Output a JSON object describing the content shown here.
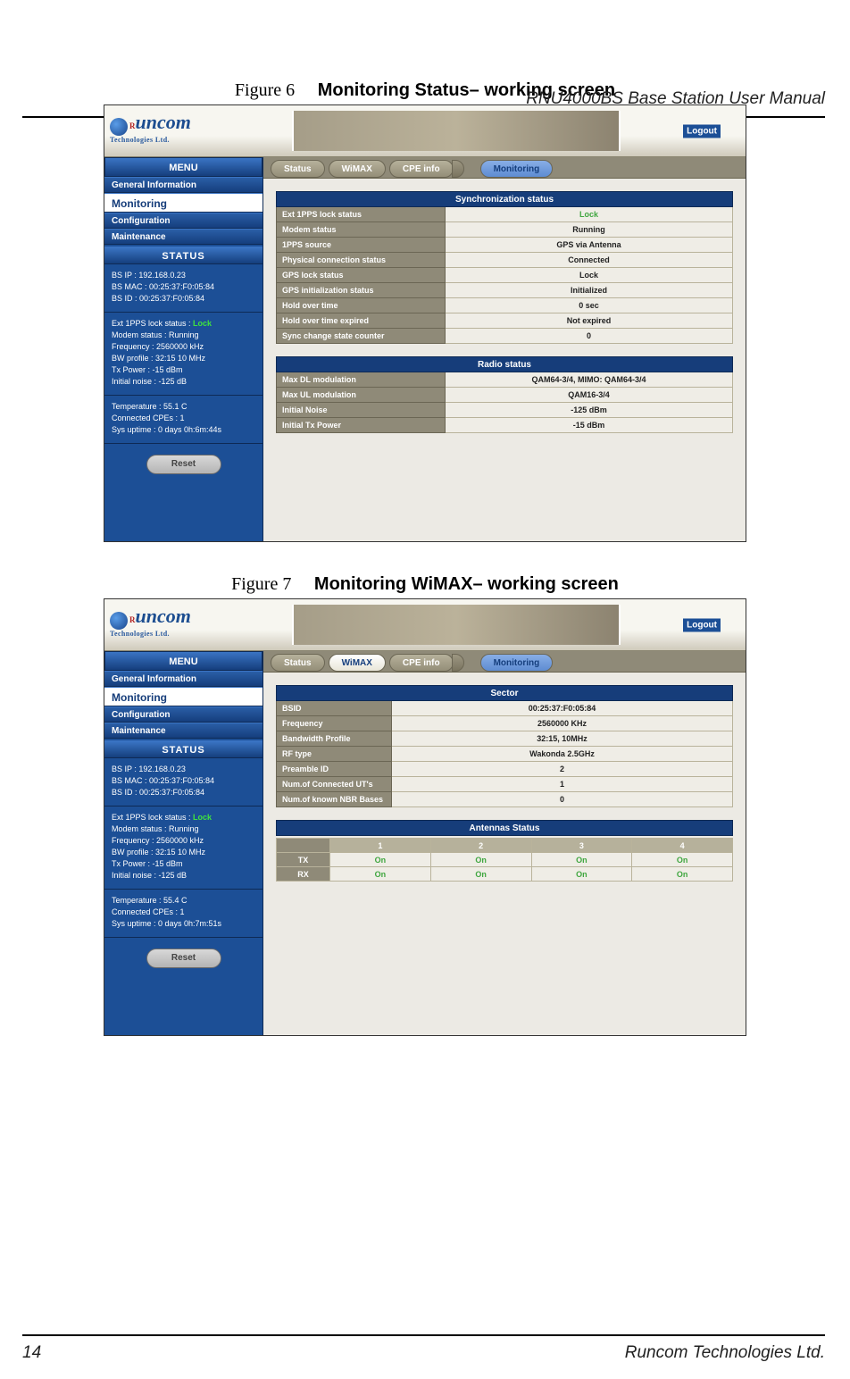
{
  "doc": {
    "header": "RNU4000BS Base Station User Manual",
    "page_number": "14",
    "footer": "Runcom Technologies Ltd."
  },
  "captions": {
    "fig6_num": "Figure 6",
    "fig6_title": "Monitoring Status– working screen",
    "fig7_num": "Figure 7",
    "fig7_title": "Monitoring WiMAX– working screen"
  },
  "common": {
    "logo_line1": "uncom",
    "logo_red": "R",
    "logo_line2": "Technologies Ltd.",
    "logout": "Logout",
    "menu_label": "MENU",
    "status_label": "STATUS",
    "nav": [
      "General Information",
      "Monitoring",
      "Configuration",
      "Maintenance"
    ],
    "reset": "Reset",
    "tabs": {
      "status": "Status",
      "wimax": "WiMAX",
      "cpe": "CPE info",
      "monitoring": "Monitoring"
    }
  },
  "fig6": {
    "status_lines": {
      "l1": "BS IP :  192.168.0.23",
      "l2": "BS MAC :  00:25:37:F0:05:84",
      "l3": "BS ID :  00:25:37:F0:05:84",
      "l4a": "Ext 1PPS lock status : ",
      "l4b": "Lock",
      "l5": "Modem status :  Running",
      "l6": "Frequency :  2560000 kHz",
      "l7": "BW profile :  32:15 10 MHz",
      "l8": "Tx Power :  -15 dBm",
      "l9": "Initial noise :  -125 dB",
      "l10": "Temperature :  55.1 C",
      "l11": "Connected CPEs :  1",
      "l12": "Sys uptime :  0 days 0h:6m:44s"
    },
    "sync_title": "Synchronization status",
    "sync_rows": [
      {
        "k": "Ext 1PPS lock status",
        "v": "Lock",
        "cls": "lock"
      },
      {
        "k": "Modem status",
        "v": "Running"
      },
      {
        "k": "1PPS source",
        "v": "GPS via Antenna"
      },
      {
        "k": "Physical connection status",
        "v": "Connected"
      },
      {
        "k": "GPS lock status",
        "v": "Lock"
      },
      {
        "k": "GPS initialization status",
        "v": "Initialized"
      },
      {
        "k": "Hold over time",
        "v": "0 sec"
      },
      {
        "k": "Hold over time expired",
        "v": "Not expired"
      },
      {
        "k": "Sync change state counter",
        "v": "0"
      }
    ],
    "radio_title": "Radio status",
    "radio_rows": [
      {
        "k": "Max DL modulation",
        "v": "QAM64-3/4, MIMO: QAM64-3/4"
      },
      {
        "k": "Max UL modulation",
        "v": "QAM16-3/4"
      },
      {
        "k": "Initial Noise",
        "v": "-125 dBm"
      },
      {
        "k": "Initial Tx Power",
        "v": "-15 dBm"
      }
    ]
  },
  "fig7": {
    "status_lines": {
      "l1": "BS IP :  192.168.0.23",
      "l2": "BS MAC :  00:25:37:F0:05:84",
      "l3": "BS ID :  00:25:37:F0:05:84",
      "l4a": "Ext 1PPS lock status : ",
      "l4b": "Lock",
      "l5": "Modem status :  Running",
      "l6": "Frequency :  2560000 kHz",
      "l7": "BW profile :  32:15 10 MHz",
      "l8": "Tx Power :  -15 dBm",
      "l9": "Initial noise :  -125 dB",
      "l10": "Temperature :  55.4 C",
      "l11": "Connected CPEs :  1",
      "l12": "Sys uptime :  0 days 0h:7m:51s"
    },
    "sector_title": "Sector",
    "sector_rows": [
      {
        "k": "BSID",
        "v": "00:25:37:F0:05:84"
      },
      {
        "k": "Frequency",
        "v": "2560000 KHz"
      },
      {
        "k": "Bandwidth Profile",
        "v": "32:15, 10MHz"
      },
      {
        "k": "RF type",
        "v": "Wakonda 2.5GHz"
      },
      {
        "k": "Preamble ID",
        "v": "2"
      },
      {
        "k": "Num.of Connected UT's",
        "v": "1"
      },
      {
        "k": "Num.of known NBR Bases",
        "v": "0"
      }
    ],
    "ant_title": "Antennas Status",
    "ant_headers": [
      "1",
      "2",
      "3",
      "4"
    ],
    "ant_rows": [
      {
        "label": "TX",
        "vals": [
          "On",
          "On",
          "On",
          "On"
        ]
      },
      {
        "label": "RX",
        "vals": [
          "On",
          "On",
          "On",
          "On"
        ]
      }
    ]
  },
  "styling": {
    "page_bg": "#ffffff",
    "sidebar_bg": "#1c4f96",
    "sidebar_grad_top": "#3a74c4",
    "sidebar_grad_bot": "#153e7d",
    "main_bg": "#eceae4",
    "panel_title_bg": "#163d7a",
    "key_bg": "#8f8a78",
    "val_bg": "#efede6",
    "lock_color": "#3fa63f",
    "tab_inactive_bg": "#948e78",
    "tab_active_color": "#153e7d",
    "border_dark": "#0e2a55"
  }
}
